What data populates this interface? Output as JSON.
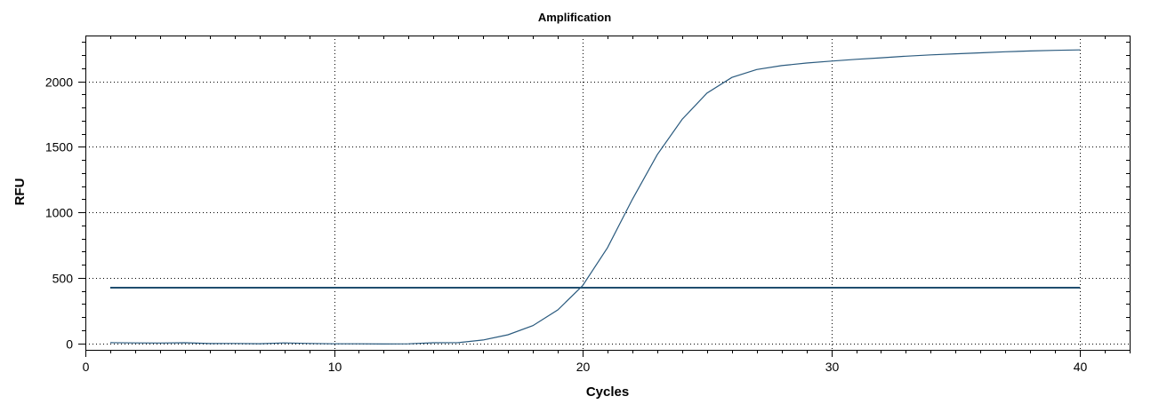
{
  "chart_data": {
    "type": "line",
    "title": "Amplification",
    "xlabel": "Cycles",
    "ylabel": "RFU",
    "xlim": [
      0,
      42
    ],
    "ylim": [
      -50,
      2350
    ],
    "xticks": [
      0,
      10,
      20,
      30,
      40
    ],
    "yticks": [
      0,
      500,
      1000,
      1500,
      2000
    ],
    "grid": true,
    "legend": "none",
    "series": [
      {
        "color": "#2a5a7e",
        "x": [
          1,
          2,
          3,
          4,
          5,
          6,
          7,
          8,
          9,
          10,
          11,
          12,
          13,
          14,
          15,
          16,
          17,
          18,
          19,
          20,
          21,
          22,
          23,
          24,
          25,
          26,
          27,
          28,
          29,
          30,
          31,
          32,
          33,
          34,
          35,
          36,
          37,
          38,
          39,
          40
        ],
        "y": [
          5,
          3,
          2,
          4,
          -2,
          -1,
          -3,
          3,
          -1,
          -4,
          -4,
          -5,
          -4,
          4,
          5,
          25,
          65,
          135,
          255,
          440,
          730,
          1100,
          1440,
          1710,
          1910,
          2030,
          2090,
          2120,
          2140,
          2155,
          2168,
          2180,
          2192,
          2202,
          2210,
          2218,
          2226,
          2232,
          2237,
          2240
        ]
      }
    ],
    "threshold": {
      "y": 425,
      "x_start": 1,
      "x_end": 40,
      "color": "#1f4e6e"
    }
  }
}
